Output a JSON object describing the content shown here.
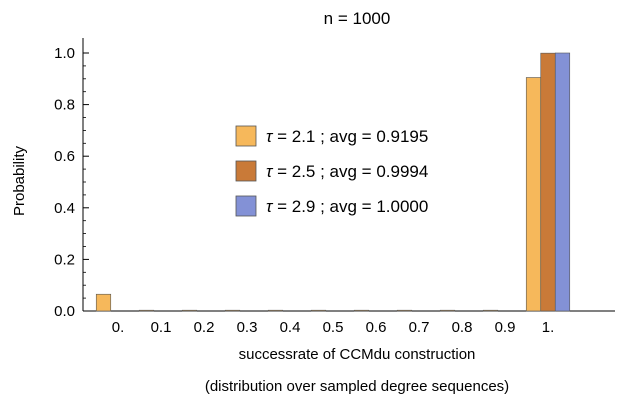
{
  "chart_data": {
    "type": "bar",
    "title": "n = 1000",
    "ylabel": "Probability",
    "xlabel": "successrate of CCMdu construction",
    "xlabel2": "(distribution over sampled degree sequences)",
    "categories": [
      "0.",
      "0.1",
      "0.2",
      "0.3",
      "0.4",
      "0.5",
      "0.6",
      "0.7",
      "0.8",
      "0.9",
      "1."
    ],
    "ylim": [
      0,
      1.0
    ],
    "yticks": [
      "0.0",
      "0.2",
      "0.4",
      "0.6",
      "0.8",
      "1.0"
    ],
    "legend_position": "center",
    "series": [
      {
        "legend_tau": "τ",
        "legend_rest": " = 2.1 ; avg = 0.9195",
        "color": "#F6B85B",
        "values": [
          0.065,
          0.003,
          0.002,
          0.002,
          0.001,
          0.001,
          0.001,
          0.001,
          0.002,
          0.002,
          0.905
        ]
      },
      {
        "legend_tau": "τ",
        "legend_rest": " = 2.5 ; avg = 0.9994",
        "color": "#C97A38",
        "values": [
          0,
          0,
          0,
          0,
          0,
          0,
          0,
          0,
          0,
          0,
          0.9994
        ]
      },
      {
        "legend_tau": "τ",
        "legend_rest": " = 2.9 ; avg = 1.0000",
        "color": "#8391D6",
        "values": [
          0,
          0,
          0,
          0,
          0,
          0,
          0,
          0,
          0,
          0,
          1.0
        ]
      }
    ]
  }
}
